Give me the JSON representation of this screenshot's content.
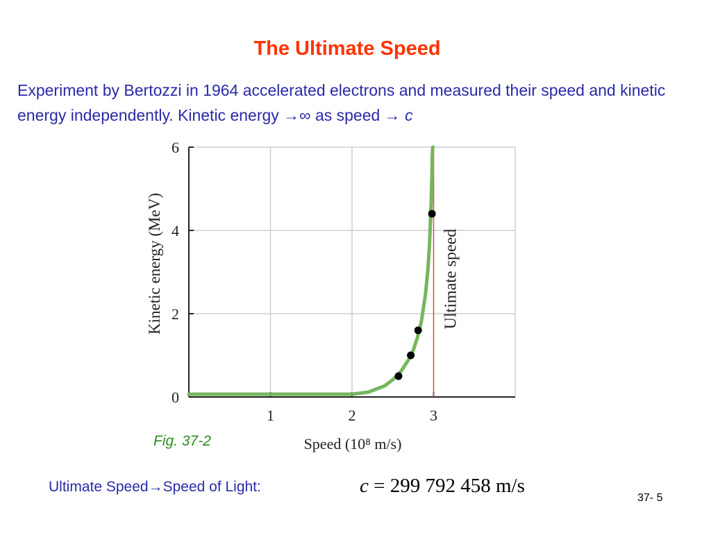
{
  "slide": {
    "title": "The Ultimate Speed",
    "intro_text": "Experiment by Bertozzi in 1964 accelerated electrons and measured their speed and kinetic energy independently. Kinetic energy →∞ as speed → ",
    "intro_variable": "c",
    "figure_caption": "Fig. 37-2",
    "footer_label": "Ultimate Speed→Speed of Light:",
    "footer_formula_var": "c",
    "footer_formula_rest": " = 299  792  458 m/s",
    "slide_number": "37- 5"
  },
  "chart_data": {
    "type": "line",
    "xlabel": "Speed (10⁸ m/s)",
    "ylabel": "Kinetic energy (MeV)",
    "xlim": [
      0,
      4
    ],
    "ylim": [
      0,
      6
    ],
    "x_ticks": [
      1,
      2,
      3
    ],
    "x_tick_labels": [
      "1",
      "2",
      "3"
    ],
    "y_ticks": [
      0,
      2,
      4,
      6
    ],
    "y_tick_labels": [
      "0",
      "2",
      "4",
      "6"
    ],
    "grid": true,
    "series": [
      {
        "kind": "theory-curve",
        "color": "#76b65e",
        "x": [
          0.0,
          0.5,
          1.0,
          1.5,
          1.8,
          2.0,
          2.2,
          2.4,
          2.5,
          2.6,
          2.7,
          2.75,
          2.8,
          2.85,
          2.9,
          2.93,
          2.95,
          2.97,
          2.98,
          2.985,
          2.99,
          2.992
        ],
        "y": [
          0.0,
          0.0,
          0.0,
          0.0,
          0.0,
          0.0,
          0.05,
          0.2,
          0.35,
          0.55,
          0.85,
          1.05,
          1.35,
          1.75,
          2.4,
          3.0,
          3.6,
          4.6,
          5.3,
          5.8,
          6.0,
          6.0
        ]
      },
      {
        "kind": "measured-points",
        "color": "#000000",
        "x": [
          2.57,
          2.72,
          2.81,
          2.98
        ],
        "y": [
          0.5,
          1.0,
          1.6,
          4.4
        ]
      }
    ],
    "annotations": [
      {
        "text": "Ultimate speed",
        "x": 3.0,
        "color": "#d9534f",
        "kind": "vertical-line"
      }
    ]
  }
}
